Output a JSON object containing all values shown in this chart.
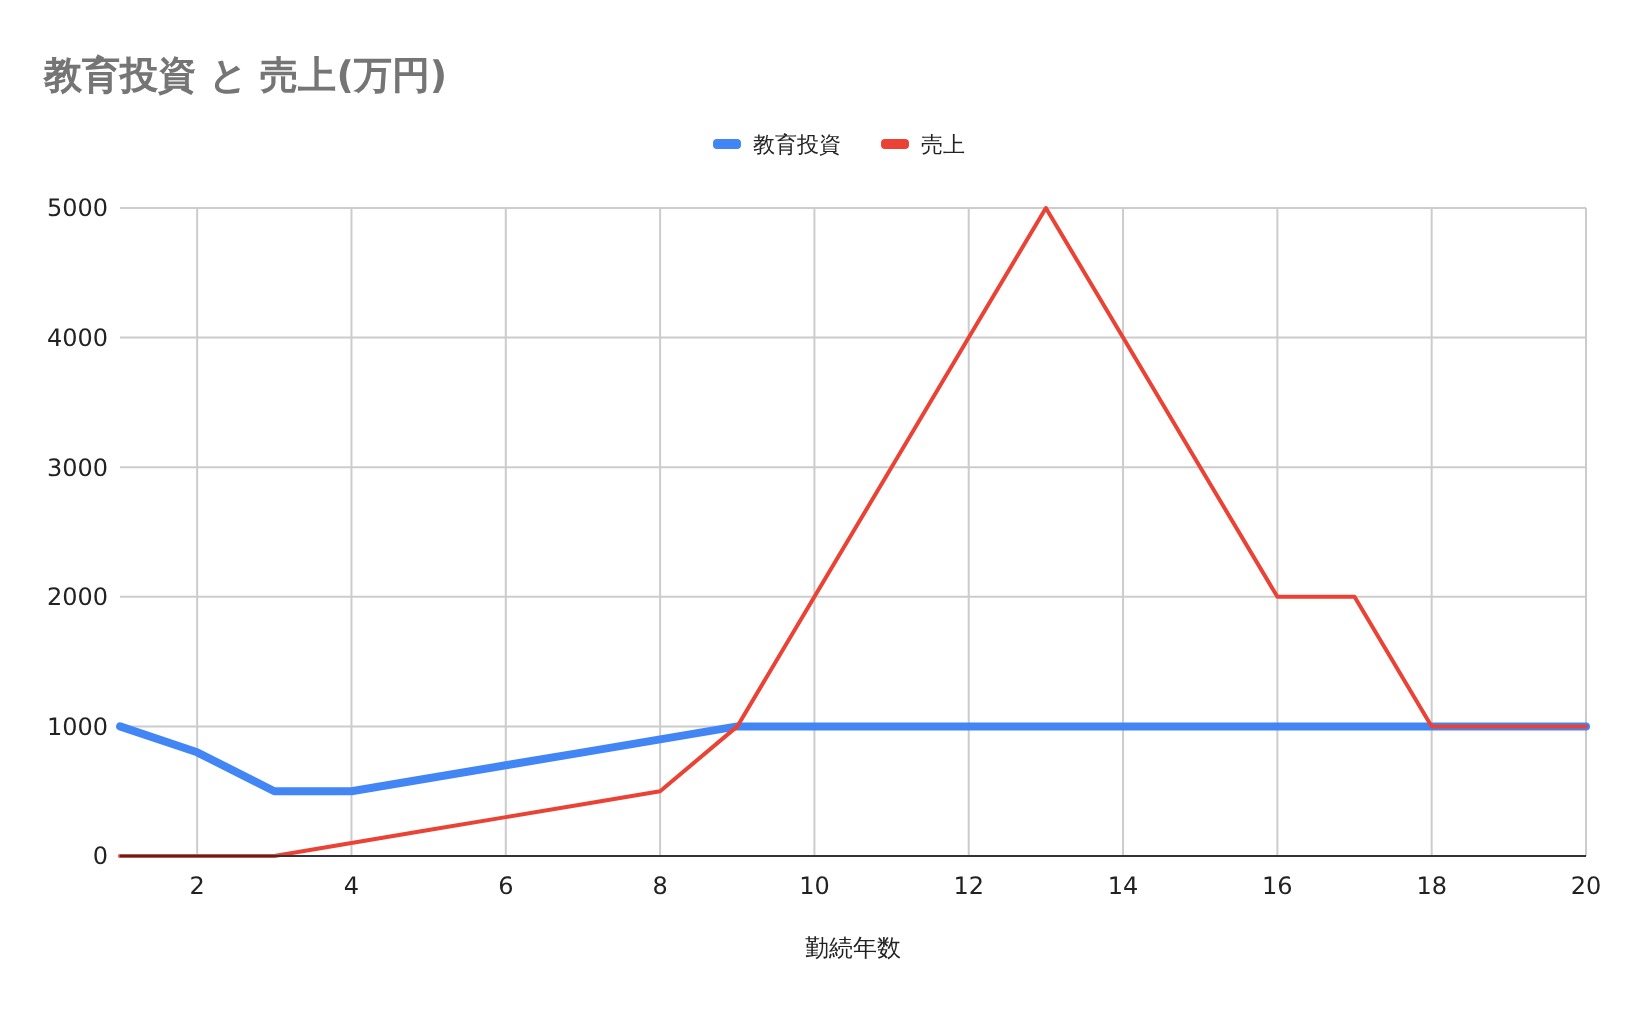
{
  "chart_data": {
    "type": "line",
    "title": "教育投資 と 売上(万円)",
    "xlabel": "勤続年数",
    "x": [
      1,
      2,
      3,
      4,
      5,
      6,
      7,
      8,
      9,
      10,
      11,
      12,
      13,
      14,
      15,
      16,
      17,
      18,
      19,
      20
    ],
    "series": [
      {
        "name": "教育投資",
        "color": "#4285f4",
        "values": [
          1000,
          800,
          500,
          500,
          600,
          700,
          800,
          900,
          1000,
          1000,
          1000,
          1000,
          1000,
          1000,
          1000,
          1000,
          1000,
          1000,
          1000,
          1000
        ]
      },
      {
        "name": "売上",
        "color": "#ea4335",
        "values": [
          0,
          0,
          0,
          100,
          200,
          300,
          400,
          500,
          1000,
          2000,
          3000,
          4000,
          5000,
          4000,
          3000,
          2000,
          2000,
          1000,
          1000,
          1000
        ]
      }
    ],
    "xlim": [
      1,
      20
    ],
    "xticks": [
      2,
      4,
      6,
      8,
      10,
      12,
      14,
      16,
      18,
      20
    ],
    "ylim": [
      0,
      5000
    ],
    "yticks": [
      0,
      1000,
      2000,
      3000,
      4000,
      5000
    ],
    "grid": true,
    "legend": "top",
    "marker": "none",
    "line_style": "solid"
  }
}
